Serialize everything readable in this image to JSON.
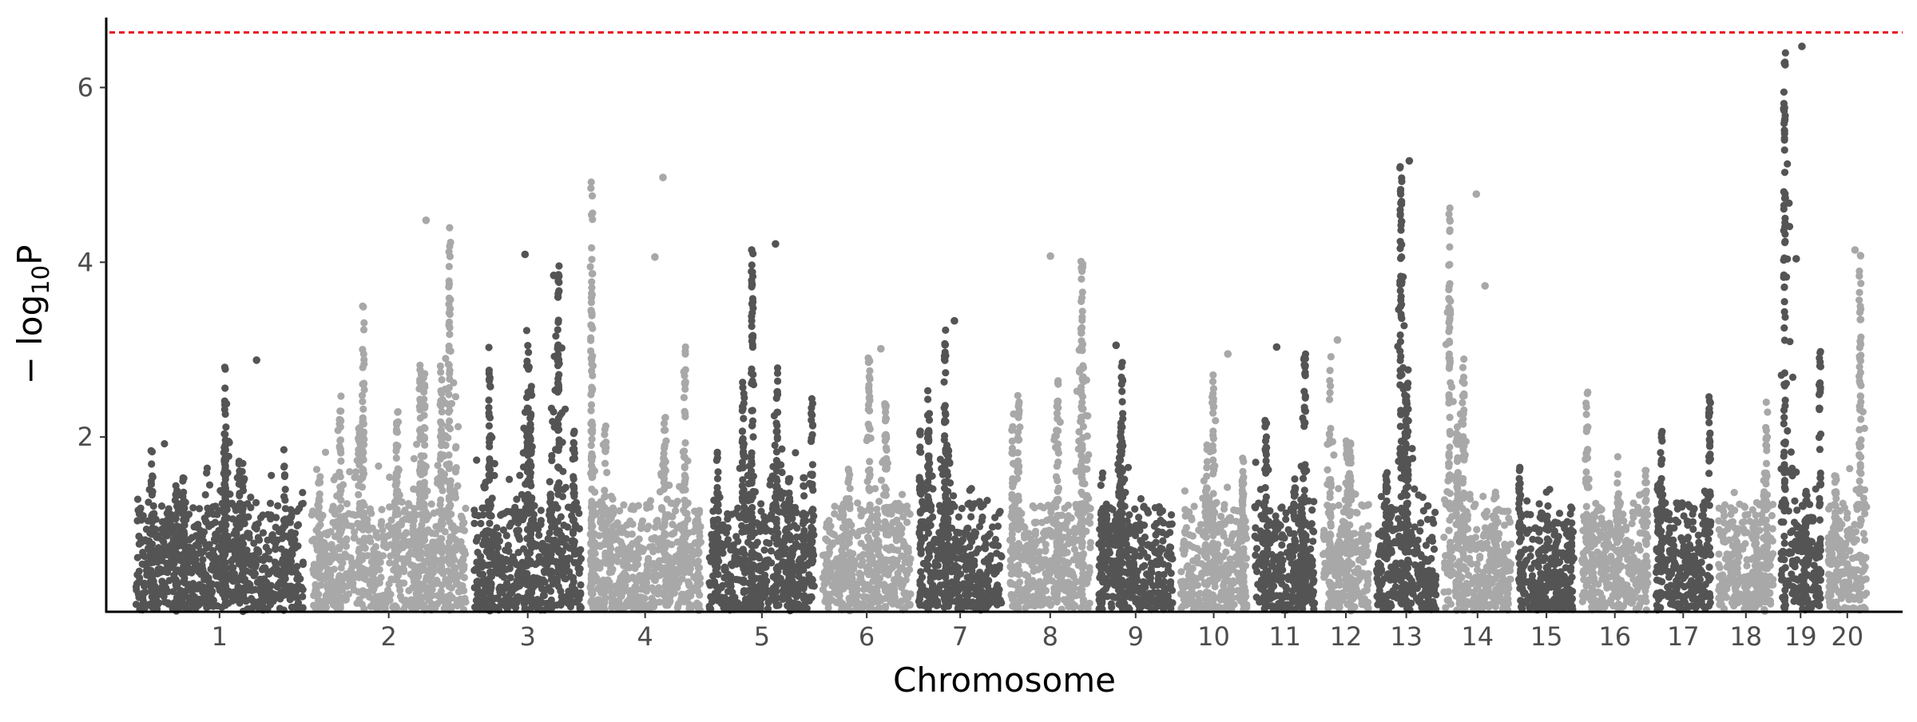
{
  "chart_data": {
    "type": "scatter",
    "subtype": "manhattan",
    "title": "",
    "xlabel": "Chromosome",
    "ylabel_parts": {
      "prefix": "− log",
      "subscript": "10",
      "suffix": "P"
    },
    "ylim": [
      0,
      6.8
    ],
    "y_ticks": [
      2,
      4,
      6
    ],
    "y_tick_labels": [
      "2",
      "4",
      "6"
    ],
    "grid": false,
    "legend": "none",
    "threshold": {
      "value": 6.63,
      "color": "#e8101c",
      "style": "dashed"
    },
    "colors": {
      "odd_chromosomes": "#545454",
      "even_chromosomes": "#a8a8a8"
    },
    "chromosomes": [
      {
        "label": "1",
        "length": 1.47,
        "peak": 2.88
      },
      {
        "label": "2",
        "length": 1.36,
        "peak": 4.48
      },
      {
        "label": "3",
        "length": 0.94,
        "peak": 4.09
      },
      {
        "label": "4",
        "length": 0.98,
        "peak": 4.97
      },
      {
        "label": "5",
        "length": 0.93,
        "peak": 4.21
      },
      {
        "label": "6",
        "length": 0.77,
        "peak": 3.01
      },
      {
        "label": "7",
        "length": 0.73,
        "peak": 3.33
      },
      {
        "label": "8",
        "length": 0.71,
        "peak": 4.07
      },
      {
        "label": "9",
        "length": 0.65,
        "peak": 3.05
      },
      {
        "label": "10",
        "length": 0.58,
        "peak": 2.95
      },
      {
        "label": "11",
        "length": 0.53,
        "peak": 3.03
      },
      {
        "label": "12",
        "length": 0.4,
        "peak": 3.11
      },
      {
        "label": "13",
        "length": 0.52,
        "peak": 5.16
      },
      {
        "label": "14",
        "length": 0.59,
        "peak": 4.78
      },
      {
        "label": "15",
        "length": 0.48,
        "peak": 1.8
      },
      {
        "label": "16",
        "length": 0.58,
        "peak": 2.59
      },
      {
        "label": "17",
        "length": 0.48,
        "peak": 2.6
      },
      {
        "label": "18",
        "length": 0.48,
        "peak": 2.55
      },
      {
        "label": "19",
        "length": 0.34,
        "peak": 6.47
      },
      {
        "label": "20",
        "length": 0.34,
        "peak": 4.14
      }
    ],
    "notable_points": [
      {
        "chromosome": "1",
        "y": 2.88
      },
      {
        "chromosome": "2",
        "y": 4.48
      },
      {
        "chromosome": "3",
        "y": 4.09
      },
      {
        "chromosome": "3",
        "y": 3.85
      },
      {
        "chromosome": "4",
        "y": 4.97
      },
      {
        "chromosome": "4",
        "y": 4.06
      },
      {
        "chromosome": "5",
        "y": 4.21
      },
      {
        "chromosome": "6",
        "y": 3.01
      },
      {
        "chromosome": "7",
        "y": 3.33
      },
      {
        "chromosome": "8",
        "y": 4.07
      },
      {
        "chromosome": "9",
        "y": 3.05
      },
      {
        "chromosome": "10",
        "y": 2.95
      },
      {
        "chromosome": "11",
        "y": 3.03
      },
      {
        "chromosome": "12",
        "y": 3.11
      },
      {
        "chromosome": "13",
        "y": 5.16
      },
      {
        "chromosome": "14",
        "y": 4.78
      },
      {
        "chromosome": "14",
        "y": 3.73
      },
      {
        "chromosome": "19",
        "y": 6.47
      },
      {
        "chromosome": "19",
        "y": 4.04
      },
      {
        "chromosome": "20",
        "y": 4.14
      }
    ]
  }
}
